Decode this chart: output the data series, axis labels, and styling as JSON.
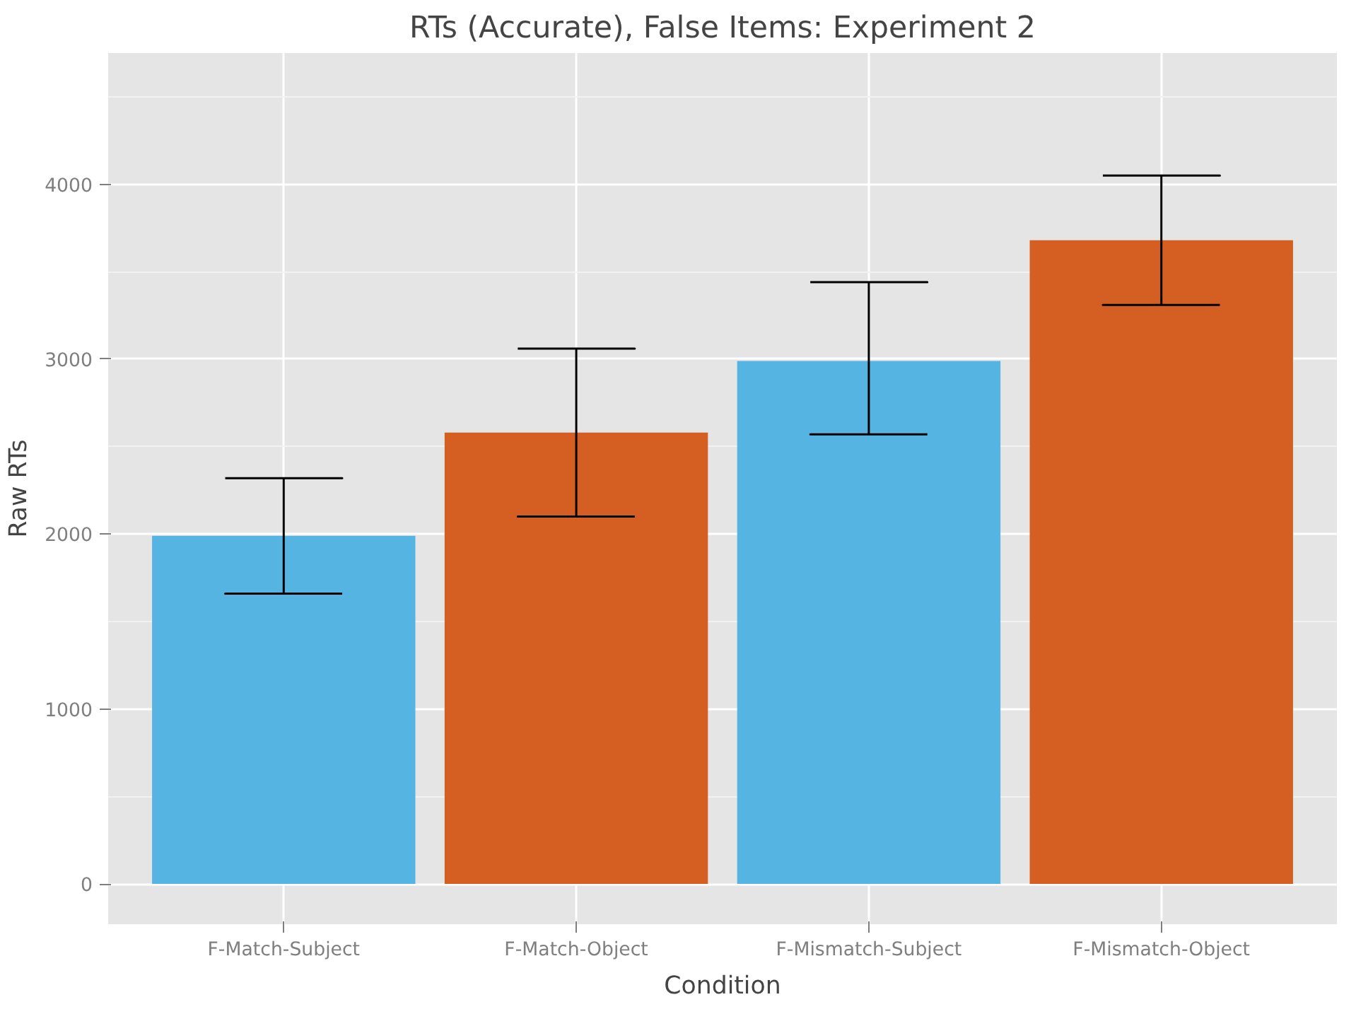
{
  "chart_data": {
    "type": "bar",
    "title": "RTs (Accurate), False Items: Experiment 2",
    "xlabel": "Condition",
    "ylabel": "Raw RTs",
    "categories": [
      "F-Match-Subject",
      "F-Match-Object",
      "F-Mismatch-Subject",
      "F-Mismatch-Object"
    ],
    "values": [
      1990,
      2580,
      2990,
      3680
    ],
    "colors": [
      "#56b4e3",
      "#d55e23",
      "#56b4e3",
      "#d55e23"
    ],
    "errors": [
      [
        1660,
        2320
      ],
      [
        2100,
        3060
      ],
      [
        2570,
        3440
      ],
      [
        3310,
        4050
      ]
    ],
    "ylim": [
      -230,
      4750
    ],
    "yticks": [
      0,
      1000,
      2000,
      3000,
      4000
    ],
    "grid": true
  }
}
